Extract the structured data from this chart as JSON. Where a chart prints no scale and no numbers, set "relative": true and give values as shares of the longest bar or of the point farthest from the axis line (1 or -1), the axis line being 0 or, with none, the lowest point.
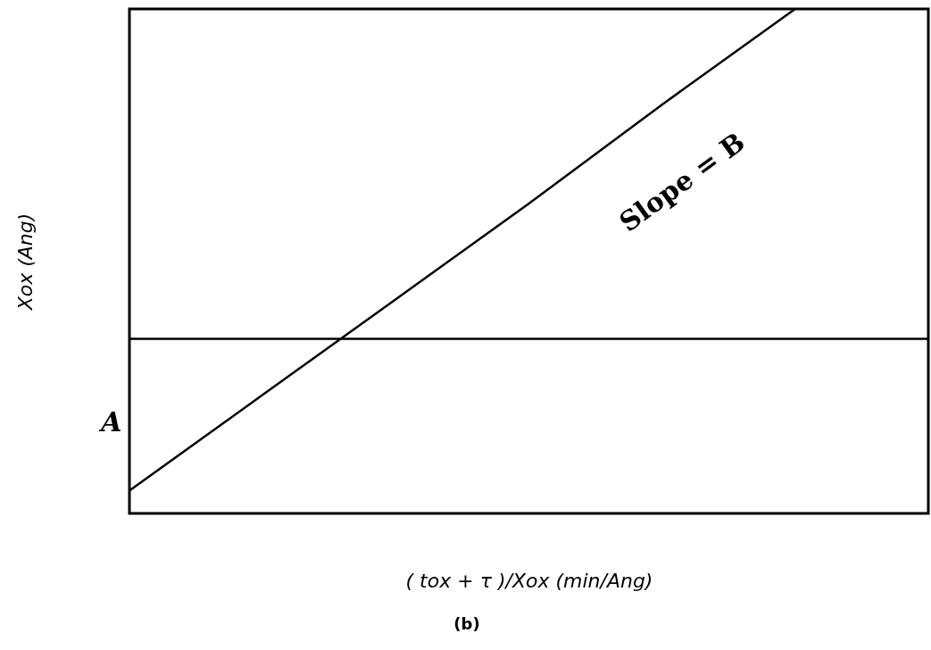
{
  "chart_data": {
    "type": "line",
    "relative": true,
    "xlabel": "( tox + τ )/Xox (min/Ang)",
    "ylabel": "Xox      (Ang)",
    "categories": [
      null,
      null,
      null,
      null,
      null,
      null,
      null
    ],
    "series": [
      {
        "color": "#000000",
        "values": [
          -0.46,
          -0.17,
          0.12,
          0.41,
          0.71,
          1,
          null
        ]
      }
    ],
    "ref_lines": [
      {
        "axis": "y",
        "value": 0
      }
    ],
    "annotations": [
      "Slope = B",
      "A",
      "(b)"
    ],
    "tick_labels": false,
    "grid": false,
    "marker": "none",
    "line_style": "solid"
  }
}
